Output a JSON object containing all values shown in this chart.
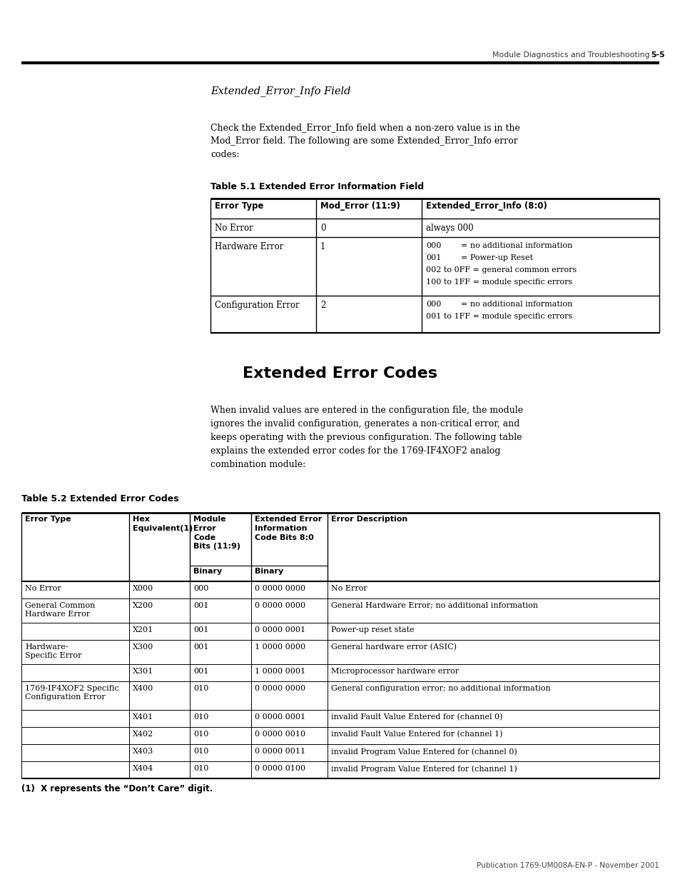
{
  "page_header_text": "Module Diagnostics and Troubleshooting",
  "page_header_num": "5-5",
  "section_title": "Extended_Error_Info Field",
  "intro_text_lines": [
    "Check the Extended_Error_Info field when a non-zero value is in the",
    "Mod_Error field. The following are some Extended_Error_Info error",
    "codes:"
  ],
  "table1_title": "Table 5.1 Extended Error Information Field",
  "table1_headers": [
    "Error Type",
    "Mod_Error (11:9)",
    "Extended_Error_Info (8:0)"
  ],
  "table1_rows": [
    [
      "No Error",
      "0",
      "always 000"
    ],
    [
      "Hardware Error",
      "1",
      [
        [
          "000",
          "= no additional information"
        ],
        [
          "001",
          "= Power-up Reset"
        ],
        [
          "002 to 0FF = general common errors",
          ""
        ],
        [
          "100 to 1FF = module specific errors",
          ""
        ]
      ]
    ],
    [
      "Configuration Error",
      "2",
      [
        [
          "000",
          "= no additional information"
        ],
        [
          "001 to 1FF = module specific errors",
          ""
        ]
      ]
    ]
  ],
  "section2_title": "Extended Error Codes",
  "section2_text_lines": [
    "When invalid values are entered in the configuration file, the module",
    "ignores the invalid configuration, generates a non-critical error, and",
    "keeps operating with the previous configuration. The following table",
    "explains the extended error codes for the 1769-IF4XOF2 analog",
    "combination module:"
  ],
  "table2_title": "Table 5.2 Extended Error Codes",
  "table2_col_widths": [
    1.55,
    0.88,
    0.88,
    1.1,
    4.79
  ],
  "table2_header1": [
    "Error Type",
    "Hex\nEquivalent(1)",
    "Module\nError\nCode\nBits (11:9)",
    "Extended Error\nInformation\nCode Bits 8:0",
    "Error Description"
  ],
  "table2_rows": [
    [
      "No Error",
      "X000",
      "000",
      "0 0000 0000",
      "No Error"
    ],
    [
      "General Common\nHardware Error",
      "X200",
      "001",
      "0 0000 0000",
      "General Hardware Error; no additional information"
    ],
    [
      "",
      "X201",
      "001",
      "0 0000 0001",
      "Power-up reset state"
    ],
    [
      "Hardware-\nSpecific Error",
      "X300",
      "001",
      "1 0000 0000",
      "General hardware error (ASIC)"
    ],
    [
      "",
      "X301",
      "001",
      "1 0000 0001",
      "Microprocessor hardware error"
    ],
    [
      "1769-IF4XOF2 Specific\nConfiguration Error",
      "X400",
      "010",
      "0 0000 0000",
      "General configuration error; no additional information"
    ],
    [
      "",
      "X401",
      "010",
      "0 0000 0001",
      "invalid Fault Value Entered for (channel 0)"
    ],
    [
      "",
      "X402",
      "010",
      "0 0000 0010",
      "invalid Fault Value Entered for (channel 1)"
    ],
    [
      "",
      "X403",
      "010",
      "0 0000 0011",
      "invalid Program Value Entered for (channel 0)"
    ],
    [
      "",
      "X404",
      "010",
      "0 0000 0100",
      "invalid Program Value Entered for (channel 1)"
    ]
  ],
  "footnote": "(1)  X represents the “Don’t Care” digit.",
  "footer_text": "Publication 1769-UM008A-EN-P - November 2001",
  "bg_color": "#ffffff"
}
